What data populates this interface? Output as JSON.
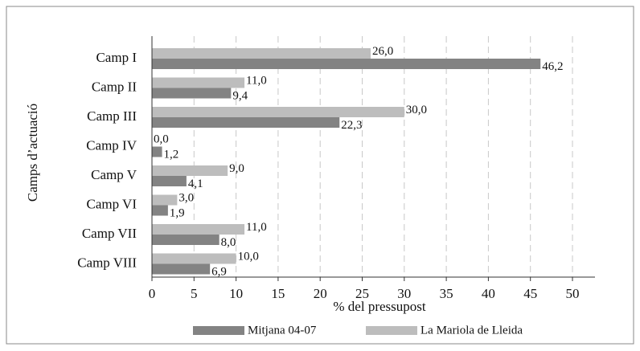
{
  "chart_data": {
    "type": "bar",
    "orientation": "horizontal",
    "xlabel": "% del pressupost",
    "ylabel": "Camps d’actuació",
    "categories": [
      "Camp I",
      "Camp II",
      "Camp III",
      "Camp IV",
      "Camp V",
      "Camp VI",
      "Camp VII",
      "Camp VIII"
    ],
    "series": [
      {
        "name": "Mitjana 04-07",
        "color": "#838383",
        "values": [
          46.2,
          9.4,
          22.3,
          1.2,
          4.1,
          1.9,
          8.0,
          6.9
        ],
        "value_labels": [
          "46,2",
          "9,4",
          "22,3",
          "1,2",
          "4,1",
          "1,9",
          "8,0",
          "6,9"
        ]
      },
      {
        "name": "La Mariola de Lleida",
        "color": "#bdbdbd",
        "values": [
          26.0,
          11.0,
          30.0,
          0.0,
          9.0,
          3.0,
          11.0,
          10.0
        ],
        "value_labels": [
          "26,0",
          "11,0",
          "30,0",
          "0,0",
          "9,0",
          "3,0",
          "11,0",
          "10,0"
        ]
      }
    ],
    "xlim": [
      0,
      50
    ],
    "xticks": [
      0,
      5,
      10,
      15,
      20,
      25,
      30,
      35,
      40,
      45,
      50
    ],
    "grid": true,
    "legend": "bottom"
  }
}
